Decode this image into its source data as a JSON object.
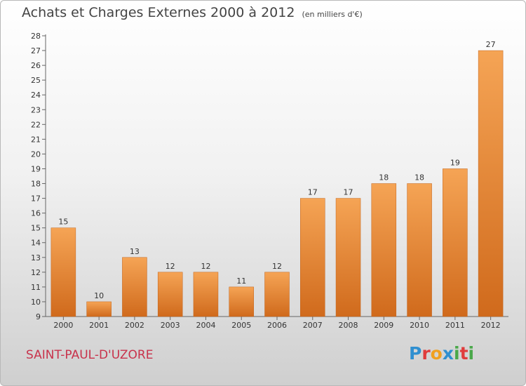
{
  "header": {
    "title": "Achats et Charges Externes 2000 à 2012",
    "subtitle": "(en milliers d'€)"
  },
  "footer": {
    "city": "SAINT-PAUL-D'UZORE",
    "logo_letters": [
      "P",
      "r",
      "o",
      "x",
      "i",
      "t",
      "i"
    ],
    "logo_colors": [
      "#2f8fd0",
      "#e03c3c",
      "#f0a020",
      "#2f8fd0",
      "#4aa84a",
      "#e03c3c",
      "#4aa84a"
    ]
  },
  "chart_data": {
    "type": "bar",
    "title": "Achats et Charges Externes 2000 à 2012",
    "subtitle": "(en milliers d'€)",
    "categories": [
      "2000",
      "2001",
      "2002",
      "2003",
      "2004",
      "2005",
      "2006",
      "2007",
      "2008",
      "2009",
      "2010",
      "2011",
      "2012"
    ],
    "values": [
      15,
      10,
      13,
      12,
      12,
      11,
      12,
      17,
      17,
      18,
      18,
      19,
      27
    ],
    "data_labels": [
      "15",
      "10",
      "13",
      "12",
      "12",
      "11",
      "12",
      "17",
      "17",
      "18",
      "18",
      "19",
      "27"
    ],
    "ylim": [
      9,
      28
    ],
    "yticks": [
      9,
      10,
      11,
      12,
      13,
      14,
      15,
      16,
      17,
      18,
      19,
      20,
      21,
      22,
      23,
      24,
      25,
      26,
      27,
      28
    ],
    "xlabel": "",
    "ylabel": "",
    "grid": false,
    "bar_color_top": "#f5a455",
    "bar_color_bottom": "#d06a1c"
  }
}
